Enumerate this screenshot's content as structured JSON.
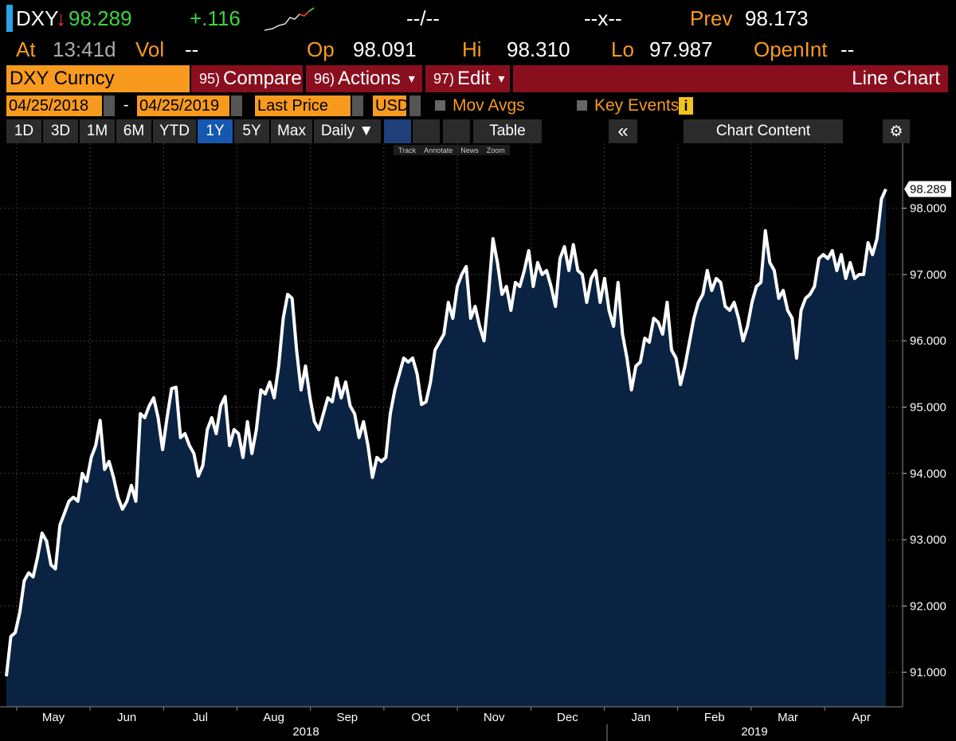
{
  "header": {
    "ticker": "DXY",
    "price": "98.289",
    "change": "+.116",
    "time_range": "--/--",
    "bid_ask": "--x--",
    "prev_label": "Prev",
    "prev": "98.173"
  },
  "quote": {
    "at_label": "At",
    "time": "13:41d",
    "vol_label": "Vol",
    "vol": "--",
    "open_label": "Op",
    "open": "98.091",
    "high_label": "Hi",
    "high": "98.310",
    "low_label": "Lo",
    "low": "97.987",
    "oi_label": "OpenInt",
    "oi": "--"
  },
  "menu": {
    "security": "DXY Curncy",
    "items": [
      {
        "num": "95)",
        "label": "Compare"
      },
      {
        "num": "96)",
        "label": "Actions"
      },
      {
        "num": "97)",
        "label": "Edit"
      }
    ],
    "view": "Line Chart"
  },
  "settings": {
    "start": "04/25/2018",
    "dash": "-",
    "end": "04/25/2019",
    "field": "Last Price",
    "currency": "USD",
    "mov_avgs": "Mov Avgs",
    "key_events": "Key Events"
  },
  "toolbar": {
    "ranges": [
      "1D",
      "3D",
      "1M",
      "6M",
      "YTD",
      "1Y",
      "5Y",
      "Max"
    ],
    "active": "1Y",
    "period": "Daily ▼",
    "table": "Table",
    "collapse": "«",
    "content": "Chart Content"
  },
  "tools": [
    "Track",
    "Annotate",
    "News",
    "Zoom"
  ],
  "chart_data": {
    "type": "line",
    "color": "#ffffff",
    "fill": "#0b2342",
    "values": [
      90.94,
      91.54,
      91.6,
      91.9,
      92.38,
      92.5,
      92.44,
      92.74,
      93.1,
      92.98,
      92.62,
      92.56,
      93.22,
      93.4,
      93.58,
      93.64,
      93.58,
      94.0,
      93.88,
      94.24,
      94.42,
      94.8,
      94.06,
      94.18,
      93.94,
      93.64,
      93.46,
      93.58,
      93.82,
      93.58,
      94.9,
      94.84,
      95.02,
      95.14,
      94.84,
      94.36,
      94.84,
      95.28,
      95.3,
      94.54,
      94.6,
      94.42,
      94.3,
      93.96,
      94.12,
      94.66,
      94.84,
      94.6,
      95.02,
      95.16,
      94.42,
      94.66,
      94.6,
      94.24,
      94.78,
      94.3,
      94.66,
      95.26,
      95.2,
      95.38,
      95.14,
      95.62,
      96.34,
      96.7,
      96.64,
      95.86,
      95.26,
      95.62,
      95.14,
      94.78,
      94.66,
      94.9,
      95.14,
      95.08,
      95.44,
      95.14,
      95.38,
      95.02,
      94.9,
      94.54,
      94.78,
      94.42,
      93.94,
      94.24,
      94.18,
      94.24,
      94.9,
      95.26,
      95.5,
      95.74,
      95.68,
      95.74,
      95.5,
      95.04,
      95.08,
      95.38,
      95.86,
      95.98,
      96.1,
      96.58,
      96.34,
      96.82,
      97.0,
      97.12,
      96.34,
      96.52,
      96.22,
      96.0,
      96.7,
      97.54,
      97.18,
      96.7,
      96.82,
      96.46,
      96.88,
      96.82,
      97.06,
      97.36,
      96.82,
      97.18,
      97.0,
      97.06,
      96.82,
      96.52,
      97.24,
      97.42,
      97.06,
      97.45,
      97.06,
      97.0,
      96.58,
      96.94,
      97.06,
      96.58,
      96.94,
      96.46,
      96.22,
      96.88,
      96.1,
      95.74,
      95.26,
      95.62,
      95.68,
      96.04,
      95.98,
      96.34,
      96.28,
      96.1,
      96.58,
      95.86,
      95.74,
      95.34,
      95.62,
      95.98,
      96.34,
      96.58,
      96.7,
      97.06,
      96.76,
      96.94,
      96.88,
      96.52,
      96.46,
      96.58,
      96.34,
      96.0,
      96.22,
      96.58,
      96.82,
      96.88,
      97.66,
      97.18,
      97.06,
      96.64,
      96.76,
      96.46,
      96.34,
      95.74,
      96.46,
      96.64,
      96.7,
      96.82,
      97.24,
      97.3,
      97.24,
      97.36,
      97.06,
      97.3,
      96.94,
      97.18,
      96.94,
      97.0,
      97.0,
      97.48,
      97.3,
      97.54,
      98.14,
      98.289
    ],
    "ylim": [
      90.48,
      98.98
    ],
    "yticks": [
      {
        "value": 91,
        "label": "91.000"
      },
      {
        "value": 92,
        "label": "92.000"
      },
      {
        "value": 93,
        "label": "93.000"
      },
      {
        "value": 94,
        "label": "94.000"
      },
      {
        "value": 95,
        "label": "95.000"
      },
      {
        "value": 96,
        "label": "96.000"
      },
      {
        "value": 97,
        "label": "97.000"
      },
      {
        "value": 98,
        "label": "98.000"
      }
    ],
    "grid": true,
    "x_labels": [
      "May",
      "Jun",
      "Jul",
      "Aug",
      "Sep",
      "Oct",
      "Nov",
      "Dec",
      "Jan",
      "Feb",
      "Mar",
      "Apr"
    ],
    "year_labels": [
      "2018",
      "2019"
    ]
  }
}
